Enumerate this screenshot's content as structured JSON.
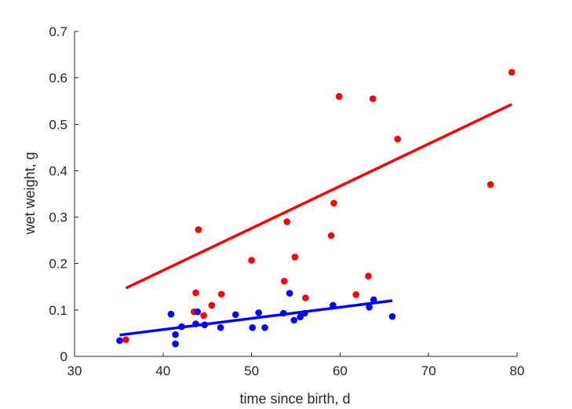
{
  "chart_data": {
    "type": "scatter",
    "xlabel": "time since birth, d",
    "ylabel": "wet weight, g",
    "xlim": [
      30,
      80
    ],
    "ylim": [
      0,
      0.7
    ],
    "xticks": [
      "30",
      "40",
      "50",
      "60",
      "70",
      "80"
    ],
    "yticks": [
      "0",
      "0.1",
      "0.2",
      "0.3",
      "0.4",
      "0.5",
      "0.6",
      "0.7"
    ],
    "grid": false,
    "series": [
      {
        "color": "#ff0000",
        "points": [
          [
            35.8,
            0.036
          ],
          [
            43.5,
            0.096
          ],
          [
            43.7,
            0.137
          ],
          [
            44.0,
            0.273
          ],
          [
            44.6,
            0.088
          ],
          [
            45.5,
            0.11
          ],
          [
            46.6,
            0.134
          ],
          [
            50.0,
            0.207
          ],
          [
            53.7,
            0.162
          ],
          [
            54.0,
            0.29
          ],
          [
            54.9,
            0.214
          ],
          [
            56.1,
            0.126
          ],
          [
            59.0,
            0.26
          ],
          [
            59.3,
            0.33
          ],
          [
            59.9,
            0.56
          ],
          [
            61.8,
            0.133
          ],
          [
            63.2,
            0.173
          ],
          [
            63.7,
            0.555
          ],
          [
            66.5,
            0.468
          ],
          [
            77.0,
            0.37
          ],
          [
            79.4,
            0.612
          ]
        ],
        "fit": [
          [
            35.8,
            0.147
          ],
          [
            79.4,
            0.543
          ]
        ]
      },
      {
        "color": "#0000ff",
        "points": [
          [
            35.1,
            0.034
          ],
          [
            40.9,
            0.091
          ],
          [
            41.4,
            0.047
          ],
          [
            41.4,
            0.027
          ],
          [
            42.1,
            0.064
          ],
          [
            43.7,
            0.07
          ],
          [
            43.9,
            0.096
          ],
          [
            44.7,
            0.068
          ],
          [
            46.5,
            0.062
          ],
          [
            48.2,
            0.09
          ],
          [
            50.1,
            0.062
          ],
          [
            50.8,
            0.094
          ],
          [
            51.5,
            0.062
          ],
          [
            53.6,
            0.093
          ],
          [
            54.3,
            0.136
          ],
          [
            54.8,
            0.078
          ],
          [
            55.5,
            0.085
          ],
          [
            56.0,
            0.093
          ],
          [
            59.2,
            0.11
          ],
          [
            63.3,
            0.106
          ],
          [
            63.8,
            0.122
          ],
          [
            65.9,
            0.086
          ]
        ],
        "fit": [
          [
            35.1,
            0.046
          ],
          [
            65.9,
            0.12
          ]
        ]
      }
    ]
  }
}
